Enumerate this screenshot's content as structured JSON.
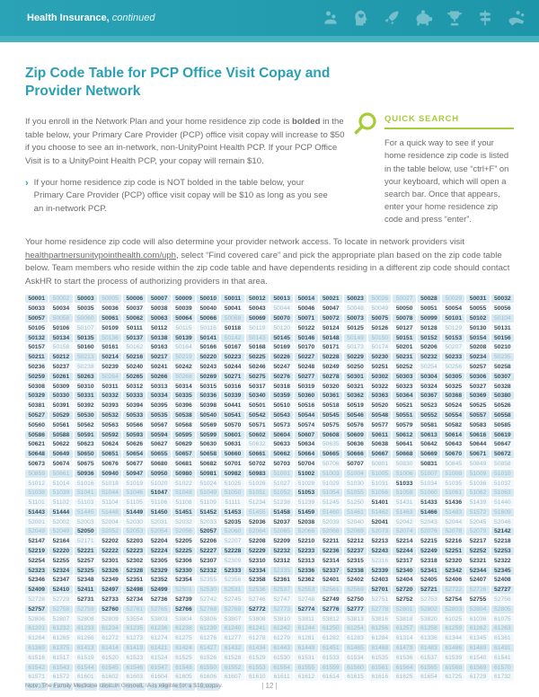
{
  "header": {
    "brand": "Health Insurance,",
    "suffix": "continued",
    "icons": [
      "coins-icon",
      "head-heart-icon",
      "rocket-icon",
      "piggy-bank-icon",
      "trophy-icon",
      "signpost-icon",
      "hand-coins-icon"
    ]
  },
  "colors": {
    "header_teal": "#28a0b4",
    "accent_strip": "#45b2c2",
    "title_teal": "#2b9fb3",
    "quick_search_green": "#a8cb38",
    "body_gray": "#6b6d70",
    "zip_pill_blue": "#d7ebf4",
    "zip_bold": "#3e4c55",
    "zip_light": "#a2bac5"
  },
  "title": "Zip Code Table for PCP Office Visit Copay and Provider Network",
  "intro": {
    "before_bold": "If you enroll in the Network Plan and your home residence zip code is ",
    "bold_word": "bolded",
    "after_bold": " in the table below, your Primary Care Provider (PCP) office visit copay will increase to $50 if you choose to see an in-network, non-UnityPoint Health PCP. If your PCP Office Visit is to a UnityPoint Health PCP, your copay will remain $10."
  },
  "bullet": {
    "marker": "›",
    "text": "If your home residence zip code is NOT bolded in the table below, your Primary Care Provider (PCP) office visit copay will be $10 as long as you see an in-network PCP."
  },
  "quick_search": {
    "heading": "QUICK SEARCH",
    "body": "For a quick way to see if your home residence zip code is listed in the table below, use “ctrl+F” on your keyboard, which will open a search bar. Once that appears, enter your home residence zip code and press “enter”."
  },
  "network_paragraph": {
    "before_link": "Your home residence zip code will also determine your provider network access. To locate in network providers visit ",
    "link": "healthpartnersunitypointhealth.com/uph",
    "after_link": ", select “Find covered care” and pick the appropriate plan based on the zip code table below. Team members who reside within the zip code table and have dependents residing in a different zip code should contact AskHR to start the process of authorizing providers in that area."
  },
  "zip_table": {
    "bold_marker": "*",
    "rows": [
      "*50001 50002 *50003 50005 *50006 *50007 *50009 *50010 *50011 *50012 *50013 *50014 *50021 *50023 50026 50027 *50028 50029 *50031 *50032",
      "*50033 *50034 *50035 *50036 *50037 *50038 *50039 *50040 *50041 *50043 50044 *50046 *50047 50048 50049 *50050 *50051 *50054 *50055 *50056",
      "*50057 50058 50060 *50061 *50062 *50063 *50064 *50066 50068 *50069 *50070 *50071 *50072 *50073 *50075 *50078 *50099 *50101 *50102 50104",
      "*50105 *50106 50107 *50109 *50111 *50112 50115 50116 *50118 50119 50120 *50122 *50124 *50125 *50126 *50127 *50128 50129 *50130 *50131",
      "*50132 *50134 *50135 50136 *50137 *50138 *50139 *50141 50142 50143 *50145 *50146 *50148 50149 50150 *50151 *50152 *50153 *50154 *50156",
      "*50157 50158 *50160 *50161 50162 *50163 50164 *50166 *50167 *50168 *50169 *50170 *50171 50173 50174 *50201 *50206 50207 *50208 *50210",
      "*50211 *50212 50213 *50214 *50216 *50217 50219 *50220 *50223 *50225 *50226 *50227 *50228 *50229 *50230 *50231 *50232 *50233 *50234 50235",
      "*50236 *50237 50238 *50239 *50240 *50241 *50242 *50243 *50244 *50246 *50247 *50248 *50249 *50250 *50251 *50252 50254 50256 *50257 *50258",
      "*50259 *50261 *50263 50264 *50265 *50266 50268 *50269 *50271 *50275 *50276 *50277 *50278 *50301 *50302 *50303 *50304 *50305 *50306 *50307",
      "*50308 *50309 *50310 *50311 *50312 *50313 *50314 *50315 *50316 *50317 *50318 *50319 *50320 *50321 *50322 *50323 *50324 *50325 *50327 *50328",
      "*50329 *50330 *50331 *50332 *50333 *50334 *50335 *50336 *50339 *50340 *50359 *50360 *50361 *50362 *50363 *50364 *50367 *50368 *50369 *50380",
      "*50381 *50391 *50392 *50393 *50394 *50395 *50396 *50398 *50441 *50501 *50510 *50516 *50518 *50519 *50520 *50521 *50523 *50524 *50525 *50526",
      "*50527 *50529 *50530 *50532 *50533 *50535 *50538 *50540 *50541 *50542 *50543 *50544 *50545 *50546 *50548 *50551 *50552 *50554 *50557 *50558",
      "*50560 *50561 *50562 *50563 *50566 *50567 *50568 *50569 *50570 *50571 *50573 *50574 *50575 *50576 *50577 *50579 *50581 *50582 *50583 *50585",
      "*50586 *50588 *50591 *50592 *50593 *50594 *50595 *50599 *50601 *50602 *50604 *50607 *50608 *50609 *50611 *50612 *50613 *50614 *50616 *50619",
      "*50621 *50622 *50623 *50624 *50626 *50627 *50629 *50630 *50631 50632 *50633 *50634 50635 *50636 *50638 *50641 *50642 *50643 *50644 *50647",
      "*50648 *50649 *50650 *50651 *50654 *50655 *50657 *50658 *50660 *50661 *50662 *50664 *50665 *50666 *50667 *50668 *50669 *50670 *50671 *50672",
      "*50673 *50674 *50675 *50676 *50677 *50680 *50681 *50682 *50701 *50702 *50703 *50704 50706 *50707 50801 50830 *50831 50845 50849 50858",
      "50859 50861 *50936 *50940 *50947 *50950 *50980 *50981 *50982 *50983 51001 *51002 51003 51004 51005 51006 51007 51008 51009 51010",
      "51012 51014 51016 51018 51019 51020 51022 51024 51025 51026 51027 51028 51029 51030 51031 *51033 51034 51035 51036 51037",
      "51038 51039 51041 51044 51046 *51047 51048 51049 51050 51051 51052 *51053 51054 51055 51056 51058 51060 51061 51062 51063",
      "51101 51102 51103 51104 51105 51106 51108 51109 51111 51234 51238 51239 51245 51250 *51401 51431 *51433 *51436 51439 51440",
      "*51443 *51444 51445 51448 *51449 *51450 *51451 *51452 *51453 51455 *51458 *51459 51460 51461 51462 51463 *51466 51483 51572 51609",
      "52001 52002 52003 52004 52030 52031 52032 52033 *52035 *52036 *52037 *52038 52039 52040 *52041 52042 52043 52044 52045 52046",
      "52048 52049 *52050 52052 52053 52054 52056 *52057 52060 52064 52065 52066 52068 52069 52073 52074 52076 52078 52079 *52142",
      "*52147 *52164 52171 *52202 *52203 *52204 *52205 *52206 52207 *52208 *52209 *52210 *52211 *52212 *52213 *52214 *52215 *52216 *52217 *52218",
      "*52219 *52220 *52221 *52222 *52223 *52224 *52225 *52227 *52228 *52229 *52232 *52233 *52236 *52237 *52243 *52244 *52249 *52251 *52252 *52253",
      "*52254 *52255 *52257 *52301 *52302 *52305 *52306 *52307 52309 *52310 *52312 *52313 *52314 *52315 52316 *52317 *52318 *52320 *52321 *52322",
      "*52323 *52324 *52325 *52326 *52328 *52329 *52330 *52332 *52333 *52334 52335 *52336 *52337 *52338 *52339 *52340 *52341 *52342 *52344 *52345",
      "*52346 *52347 *52348 *52349 *52351 *52352 *52354 52355 52356 *52358 *52361 *52362 *52401 *52402 *52403 *52404 *52405 *52406 *52407 *52408",
      "*52409 *52410 *52411 *52497 *52498 *52499 52501 52530 52531 52536 52537 52553 52561 52569 *52701 *52720 *52721 52722 52726 *52727",
      "52728 52729 *52731 *52733 *52734 *52736 *52739 52742 52745 52746 52747 52748 *52749 *52750 52751 *52752 52753 *52754 *52755 52756",
      "*52757 52758 52759 *52760 52761 52765 *52766 52768 52769 *52772 52773 *52774 *52776 *52777 52778 52801 52802 52803 52804 52805",
      "52806 52807 52808 52809 53554 53803 53804 53806 53807 53808 53810 53811 53812 53813 53816 53818 53820 61025 61036 61075",
      "61201 61232 61233 61234 61235 61236 61238 61239 61240 61241 61242 61244 61250 61254 61256 61257 61258 61259 61262 61263",
      "61264 61265 61266 61272 61273 61274 61275 61276 61277 61278 61279 61281 61282 61283 61284 61314 61336 61344 61345 61361",
      "61369 61375 61413 61414 61419 61421 61424 61427 61432 61434 61443 61449 61451 61465 61468 61479 61483 61486 61489 61491",
      "61516 61517 61519 61520 61523 61524 61525 61526 61528 61529 61530 61531 61533 61534 61535 61536 61537 61539 61540 61541",
      "61542 61543 61544 61545 61546 61547 61548 61550 61552 61553 61554 61555 61559 61560 61561 61564 61565 61568 61569 61570",
      "61571 61572 61601 61602 61603 61604 61605 61606 61607 61610 61611 61612 61614 61615 61616 61625 61654 61725 61729 61732",
      "61733 61734 61742 61747 61755 61759 61771 62682"
    ]
  },
  "footer": {
    "note": "Note: The Family Medicine clinic in Grinnell, IA is eligible for a $10 copay.",
    "page_number": "| 12 |"
  }
}
